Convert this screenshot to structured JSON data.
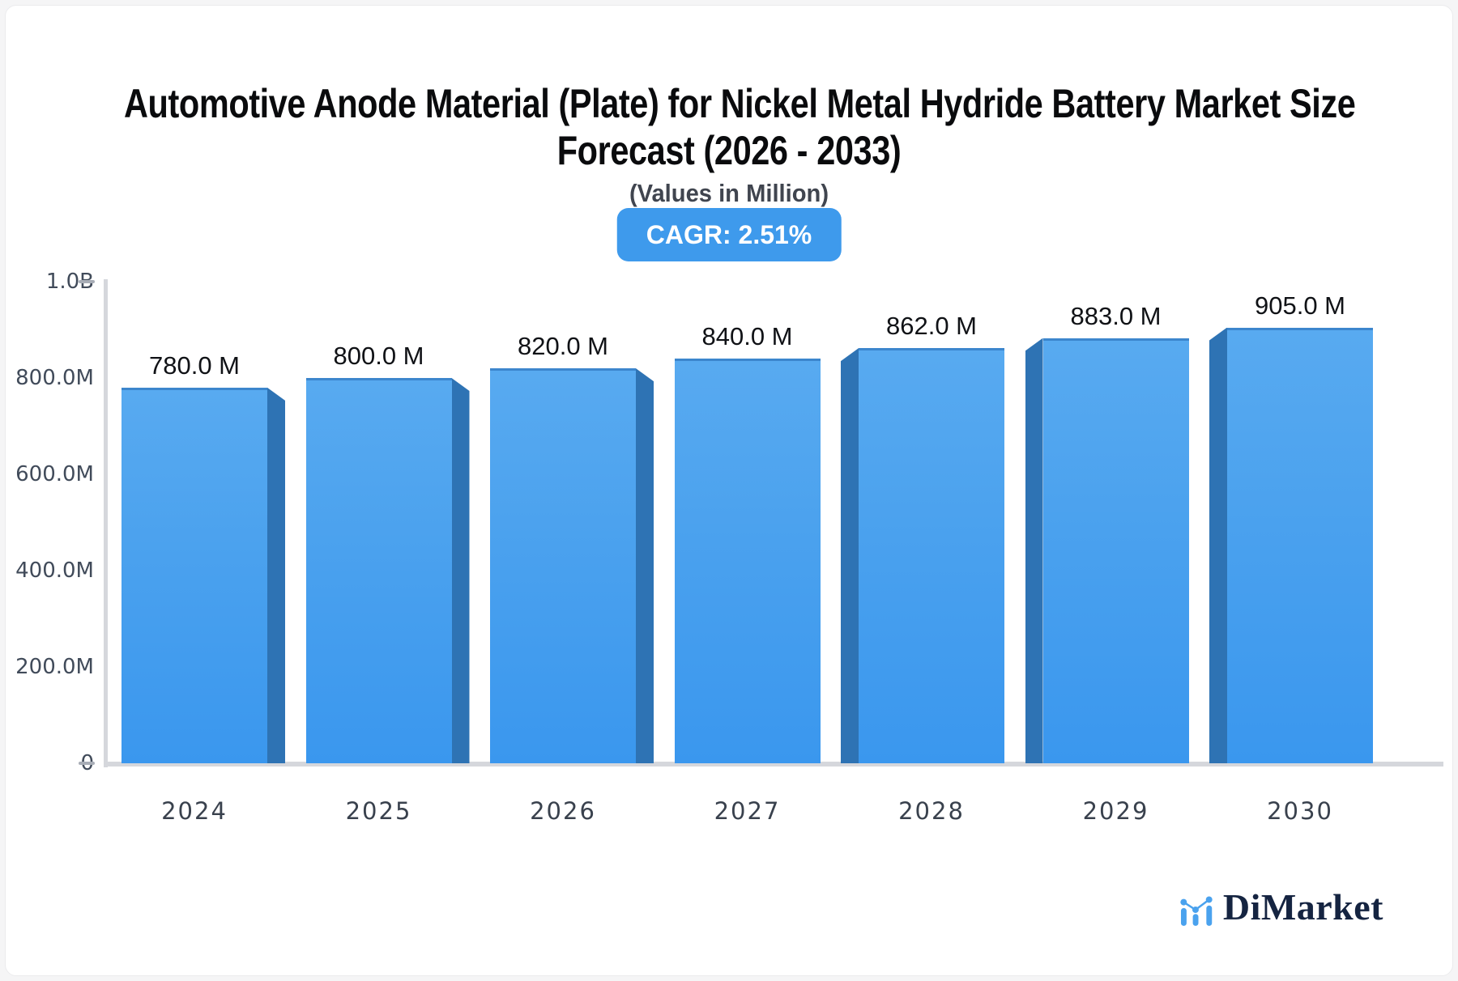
{
  "header": {
    "title_line1": "Automotive Anode Material (Plate) for Nickel Metal Hydride Battery Market Size",
    "title_line2": "Forecast (2026 - 2033)",
    "subtitle": "(Values in Million)",
    "cagr_badge": "CAGR: 2.51%"
  },
  "chart_data": {
    "type": "bar",
    "title": "Automotive Anode Material (Plate) for Nickel Metal Hydride Battery Market Size Forecast (2026 - 2033)",
    "subtitle": "(Values in Million)",
    "cagr_percent": 2.51,
    "unit": "Million",
    "categories": [
      "2024",
      "2025",
      "2026",
      "2027",
      "2028",
      "2029",
      "2030"
    ],
    "values": [
      780,
      800,
      820,
      840,
      862,
      883,
      905
    ],
    "data_labels": [
      "780.0 M",
      "800.0 M",
      "820.0 M",
      "840.0 M",
      "862.0 M",
      "883.0 M",
      "905.0 M"
    ],
    "xlabel": "",
    "ylabel": "",
    "ylim": [
      0,
      1000
    ],
    "grid": false,
    "legend": "none",
    "yticks": [
      {
        "label": "1.0B",
        "value": 1000,
        "dash": true
      },
      {
        "label": "800.0M",
        "value": 800,
        "dash": false
      },
      {
        "label": "600.0M",
        "value": 600,
        "dash": false
      },
      {
        "label": "400.0M",
        "value": 400,
        "dash": false
      },
      {
        "label": "200.0M",
        "value": 200,
        "dash": false
      },
      {
        "label": "0",
        "value": 0,
        "dash": true
      }
    ]
  },
  "colors": {
    "bar_face_top": "#58aaf0",
    "bar_face_bottom": "#3a97ee",
    "bar_top_edge": "#3c86cd",
    "bar_side": "#2e73b4",
    "badge_bg": "#3e9aec",
    "badge_text": "#ffffff",
    "axis_line": "#d5d7dc",
    "tick_dash": "#a8adb6",
    "axis_label": "#414b5a",
    "x_label": "#39414d",
    "title_text": "#0a0b0d",
    "subtitle_text": "#40454f",
    "logo_text": "#152441",
    "logo_icon": "#4aa2ee"
  },
  "logo": {
    "text": "DiMarket",
    "icon": "bar-chart-logo-icon"
  }
}
